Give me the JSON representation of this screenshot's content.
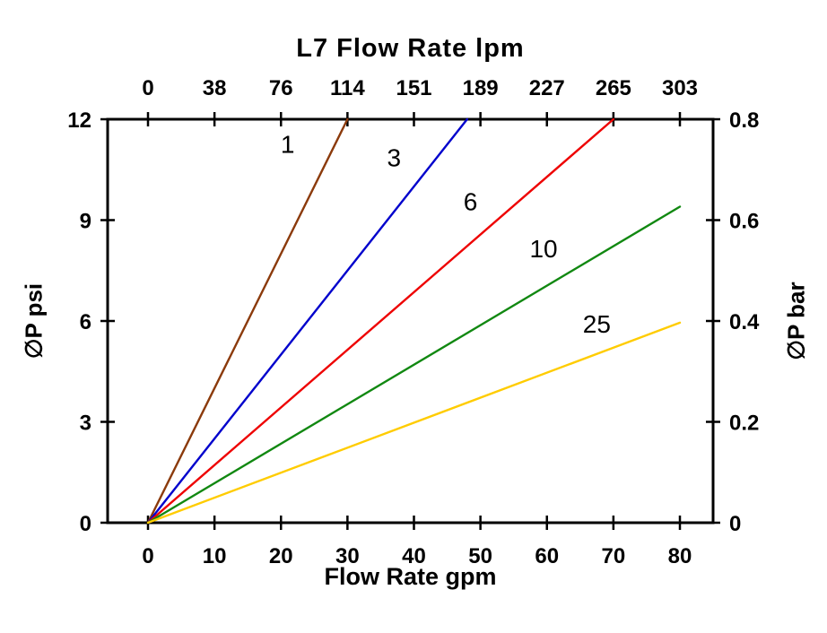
{
  "page": {
    "background": "#ffffff"
  },
  "chart_data": {
    "type": "line",
    "title": "L7 Flow Rate lpm",
    "xlabel": "Flow Rate gpm",
    "xlabel_top": "L7 Flow Rate lpm",
    "ylabel_left": "∅P psi",
    "ylabel_right": "∅P bar",
    "xlim": [
      0,
      80
    ],
    "ylim": [
      0,
      12
    ],
    "right_ylim": [
      0,
      0.8
    ],
    "grid": false,
    "legend_position": "inline-labels",
    "x_bottom_ticks": [
      0,
      10,
      20,
      30,
      40,
      50,
      60,
      70,
      80
    ],
    "x_top_ticks": [
      0,
      38,
      76,
      114,
      151,
      189,
      227,
      265,
      303
    ],
    "y_left_ticks": [
      0,
      3,
      6,
      9,
      12
    ],
    "y_right_ticks": [
      0,
      0.2,
      0.4,
      0.6,
      0.8
    ],
    "series": [
      {
        "name": "1",
        "color": "#8B3A0B",
        "points": [
          [
            0,
            0
          ],
          [
            30,
            12
          ]
        ],
        "label_x": 21,
        "label_y": 11.0
      },
      {
        "name": "3",
        "color": "#0000CC",
        "points": [
          [
            0,
            0
          ],
          [
            48,
            12
          ]
        ],
        "label_x": 37,
        "label_y": 10.6
      },
      {
        "name": "6",
        "color": "#EE0000",
        "points": [
          [
            0,
            0
          ],
          [
            70,
            12
          ]
        ],
        "label_x": 48.5,
        "label_y": 9.3
      },
      {
        "name": "10",
        "color": "#118811",
        "points": [
          [
            0,
            0
          ],
          [
            80,
            9.4
          ]
        ],
        "label_x": 59.5,
        "label_y": 7.9
      },
      {
        "name": "25",
        "color": "#FFCC00",
        "points": [
          [
            0,
            0
          ],
          [
            80,
            5.95
          ]
        ],
        "label_x": 67.5,
        "label_y": 5.65
      }
    ]
  }
}
